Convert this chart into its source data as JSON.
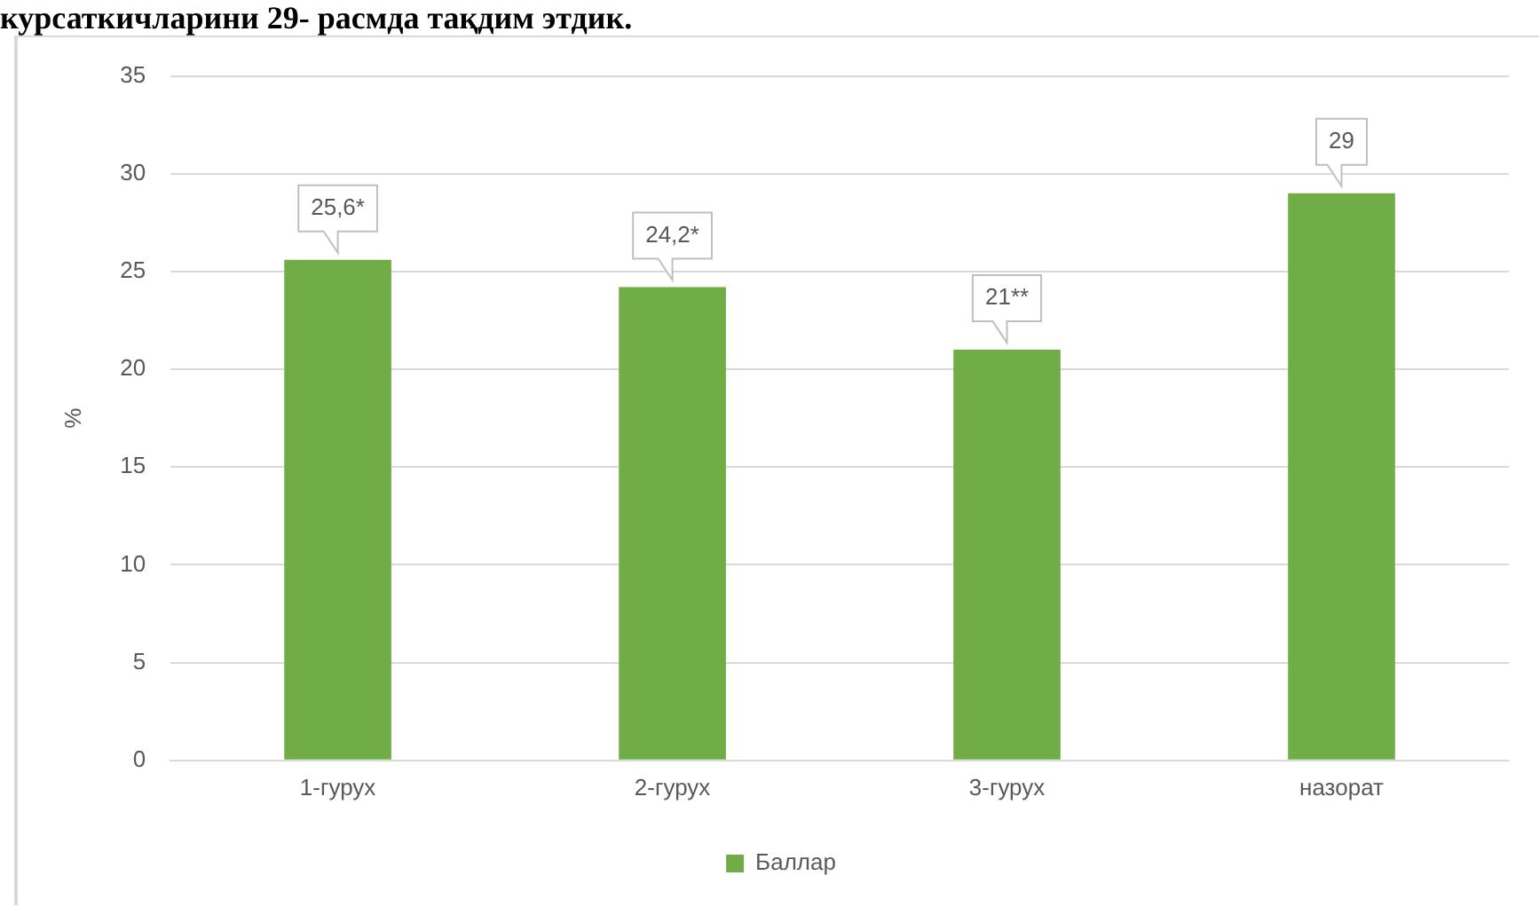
{
  "chart_data": {
    "type": "bar",
    "annotations": [
      "курсаткичларини  29- расмда тақдим этдик."
    ],
    "ylabel": "%",
    "categories": [
      "1-гурух",
      "2-гурух",
      "3-гурух",
      "назорат"
    ],
    "series": [
      {
        "name": "Баллар",
        "color": "#70ad47",
        "values": [
          25.6,
          24.2,
          21,
          29
        ],
        "value_labels": [
          "25,6*",
          "24,2*",
          "21**",
          "29"
        ]
      }
    ],
    "ylim": [
      0,
      35
    ],
    "yticks": [
      0,
      5,
      10,
      15,
      20,
      25,
      30,
      35
    ],
    "grid": "y",
    "legend": "bottom"
  }
}
